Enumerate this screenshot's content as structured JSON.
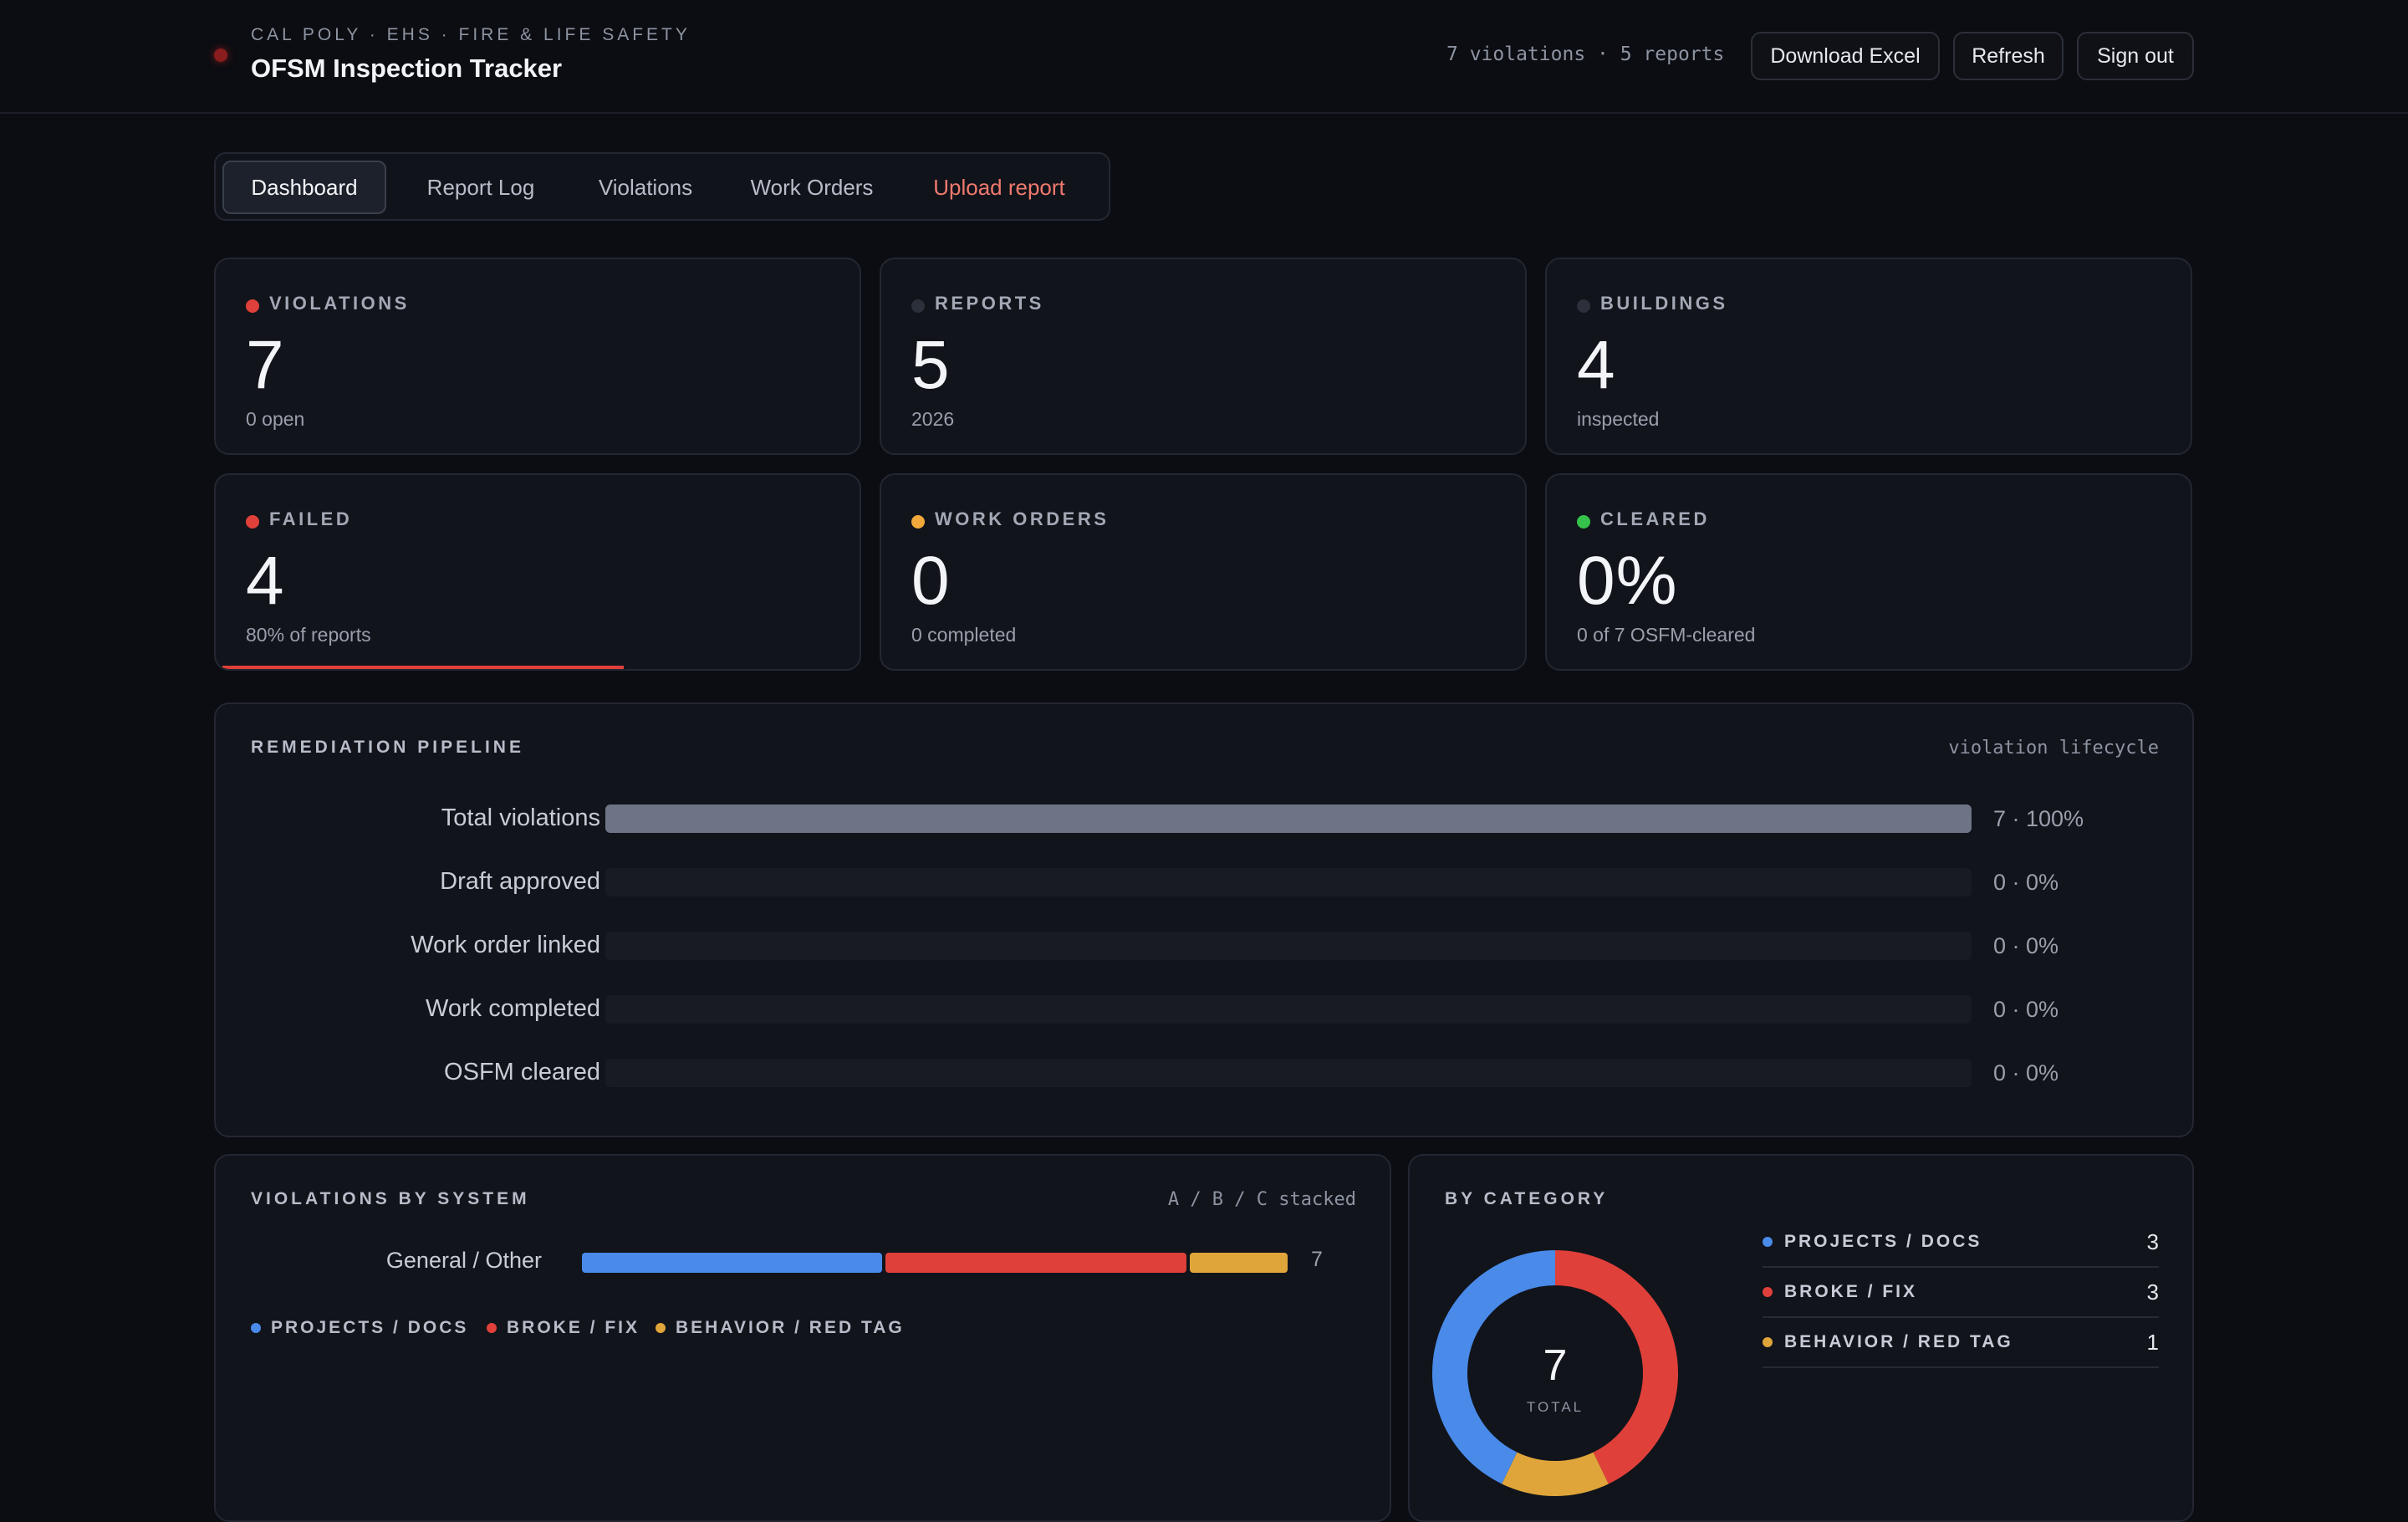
{
  "header": {
    "eyebrow": "CAL POLY · EHS · FIRE & LIFE SAFETY",
    "title": "OFSM Inspection Tracker",
    "meta": "7 violations · 5 reports",
    "buttons": {
      "download": "Download Excel",
      "refresh": "Refresh",
      "signout": "Sign out"
    }
  },
  "tabs": [
    "Dashboard",
    "Report Log",
    "Violations",
    "Work Orders",
    "Upload report"
  ],
  "active_tab": "Dashboard",
  "cards": [
    {
      "label": "VIOLATIONS",
      "value": "7",
      "sub": "0 open",
      "dot_color": "#e0403a"
    },
    {
      "label": "REPORTS",
      "value": "5",
      "sub": "2026",
      "dot_color": "#2c303a"
    },
    {
      "label": "BUILDINGS",
      "value": "4",
      "sub": "inspected",
      "dot_color": "#2c303a"
    },
    {
      "label": "FAILED",
      "value": "4",
      "sub": "80% of reports",
      "dot_color": "#e0403a",
      "progress": 0.8
    },
    {
      "label": "WORK ORDERS",
      "value": "0",
      "sub": "0 completed",
      "dot_color": "#f0a93a"
    },
    {
      "label": "CLEARED",
      "value": "0%",
      "sub": "0 of 7 OSFM-cleared",
      "dot_color": "#35c24a"
    }
  ],
  "pipeline": {
    "title": "REMEDIATION PIPELINE",
    "note": "violation lifecycle",
    "rows": [
      {
        "label": "Total violations",
        "value": "7 · 100%",
        "fraction": 1.0
      },
      {
        "label": "Draft approved",
        "value": "0 · 0%",
        "fraction": 0
      },
      {
        "label": "Work order linked",
        "value": "0 · 0%",
        "fraction": 0
      },
      {
        "label": "Work completed",
        "value": "0 · 0%",
        "fraction": 0
      },
      {
        "label": "OSFM cleared",
        "value": "0 · 0%",
        "fraction": 0
      }
    ]
  },
  "by_system": {
    "title": "VIOLATIONS BY SYSTEM",
    "note": "A / B / C stacked",
    "rows": [
      {
        "label": "General / Other",
        "total": "7",
        "segments": [
          3,
          3,
          1
        ]
      }
    ],
    "legend": [
      {
        "label": "PROJECTS / DOCS",
        "color": "#4a8ae8"
      },
      {
        "label": "BROKE / FIX",
        "color": "#e0403a"
      },
      {
        "label": "BEHAVIOR / RED TAG",
        "color": "#e0a53a"
      }
    ]
  },
  "by_category": {
    "title": "BY CATEGORY",
    "total": "7",
    "total_label": "TOTAL",
    "items": [
      {
        "label": "PROJECTS / DOCS",
        "count": "3",
        "value": 3,
        "color": "#4a8ae8"
      },
      {
        "label": "BROKE / FIX",
        "count": "3",
        "value": 3,
        "color": "#e0403a"
      },
      {
        "label": "BEHAVIOR / RED TAG",
        "count": "1",
        "value": 1,
        "color": "#e0a53a"
      }
    ]
  }
}
